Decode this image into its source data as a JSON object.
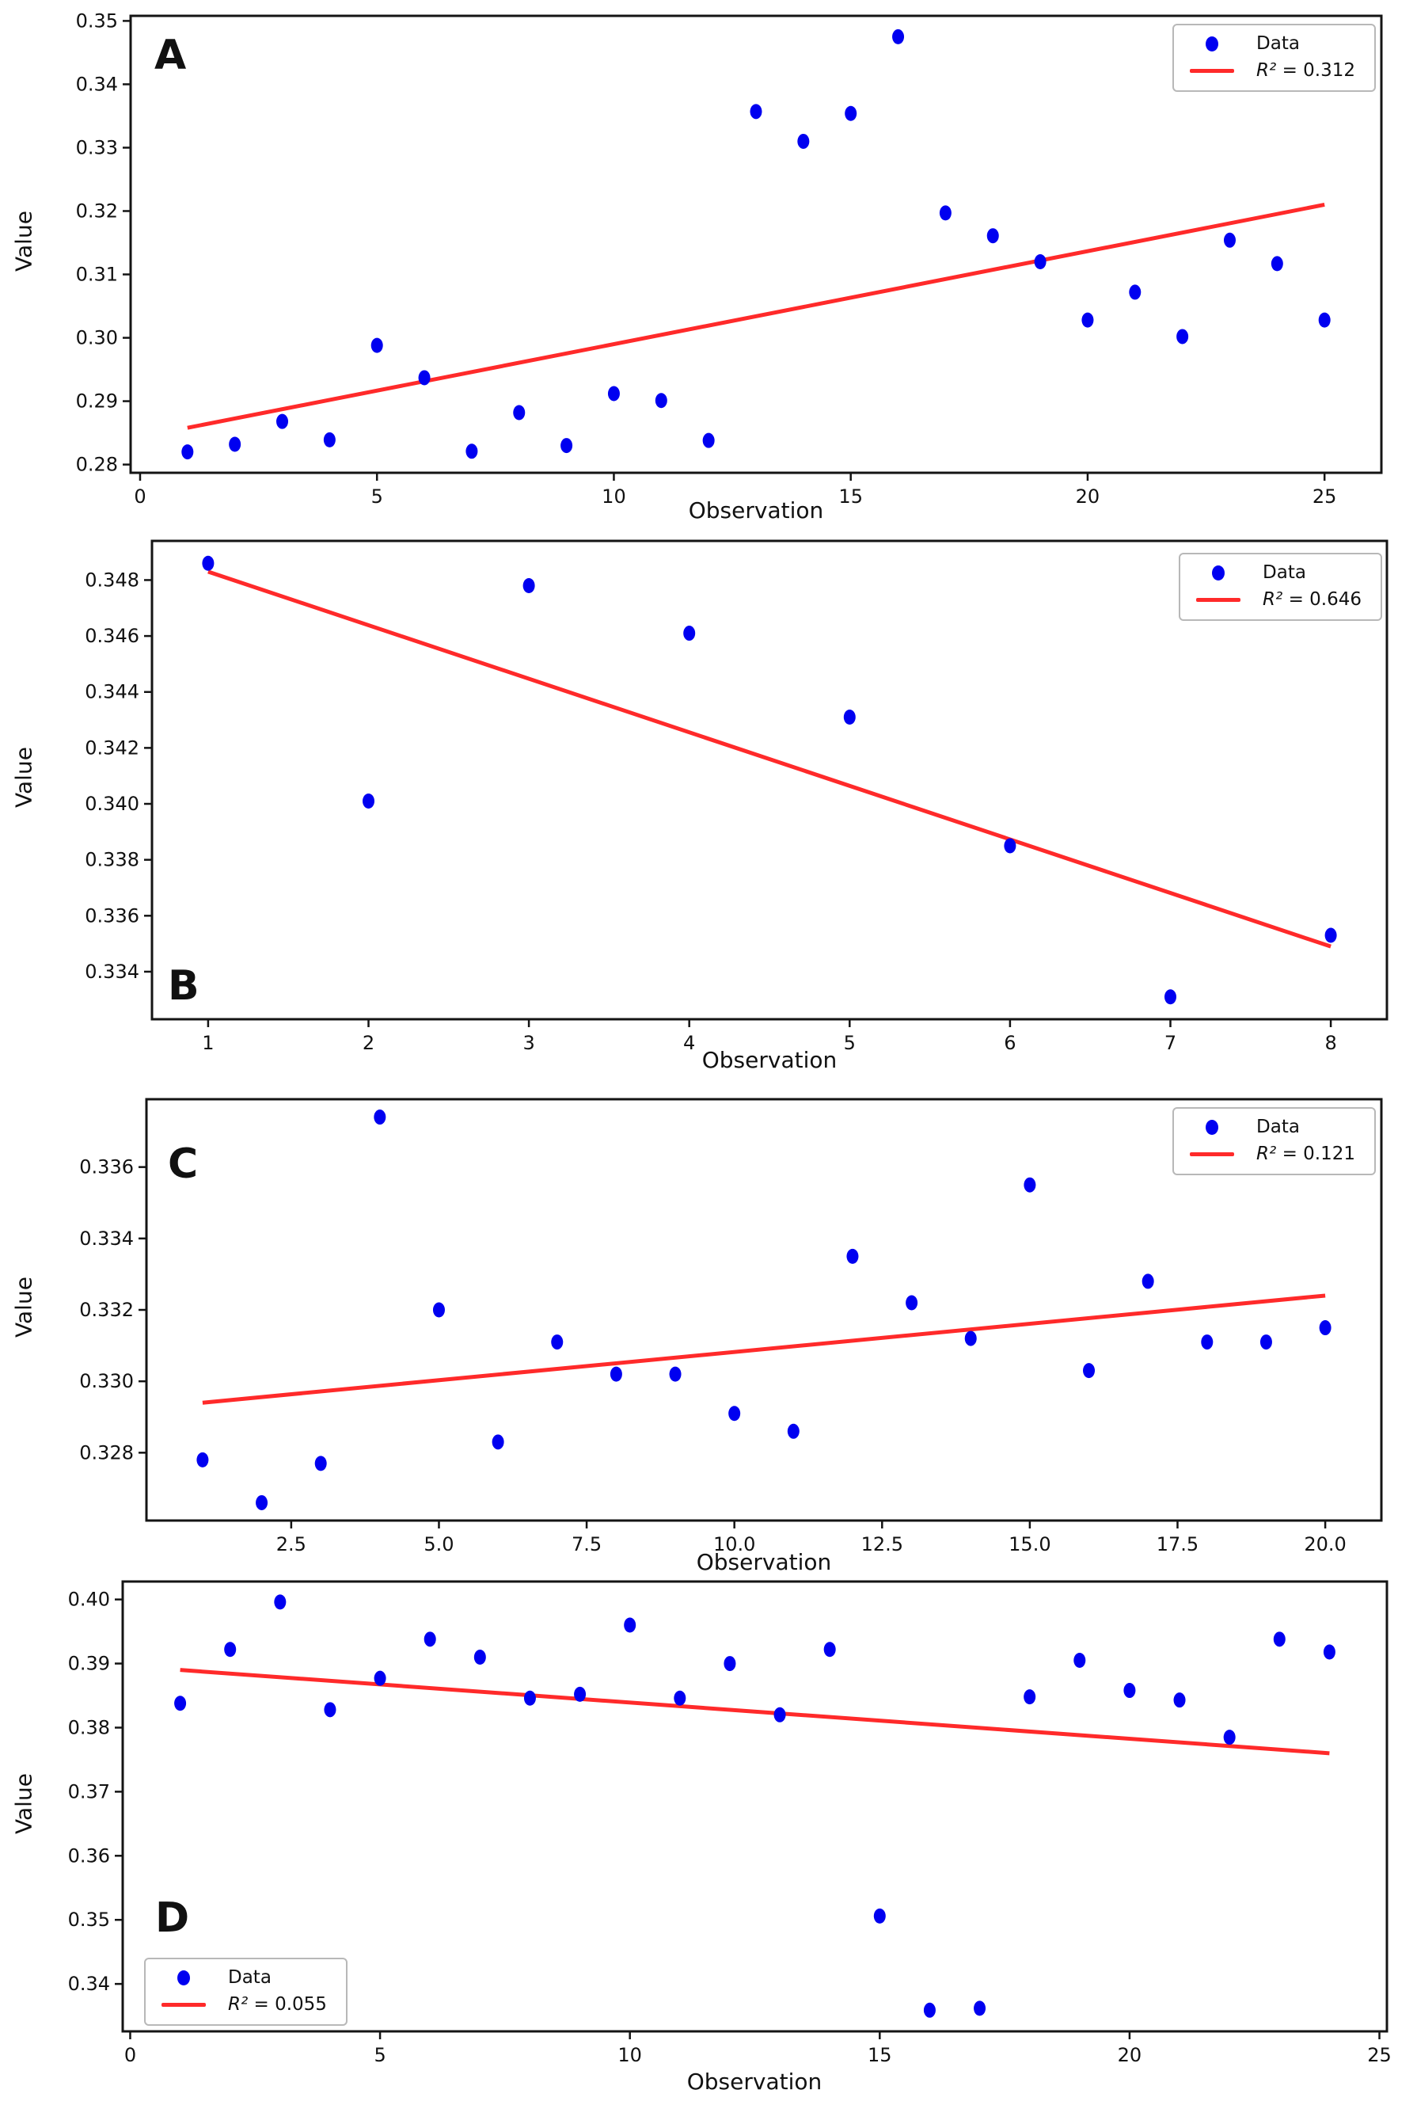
{
  "figure": {
    "xlabel": "Observation",
    "ylabel": "Value",
    "legend_data_label": "Data"
  },
  "colors": {
    "marker": "#0000f0",
    "trend": "#ff2a2a",
    "spine": "#141414",
    "tick_text": "#111111"
  },
  "chart_data": [
    {
      "type": "scatter",
      "panel_label": "A",
      "xlabel": "Observation",
      "ylabel": "Value",
      "legend": {
        "data": "Data",
        "r2_symbol": "R²",
        "r2_eq": "= 0.312",
        "position": "top-right"
      },
      "xlim": [
        -0.2,
        26.2
      ],
      "ylim": [
        0.2787,
        0.3508
      ],
      "xtick_vals": [
        0,
        5,
        10,
        15,
        20,
        25
      ],
      "xtick_labels": [
        "0",
        "5",
        "10",
        "15",
        "20",
        "25"
      ],
      "ytick_vals": [
        0.28,
        0.29,
        0.3,
        0.31,
        0.32,
        0.33,
        0.34,
        0.35
      ],
      "ytick_labels": [
        "0.28",
        "0.29",
        "0.30",
        "0.31",
        "0.32",
        "0.33",
        "0.34",
        "0.35"
      ],
      "x": [
        1,
        2,
        3,
        4,
        5,
        6,
        7,
        8,
        9,
        10,
        11,
        12,
        13,
        14,
        15,
        16,
        17,
        18,
        19,
        20,
        21,
        22,
        23,
        24,
        25
      ],
      "y": [
        0.282,
        0.2832,
        0.2868,
        0.2839,
        0.2988,
        0.2937,
        0.2821,
        0.2882,
        0.283,
        0.2912,
        0.2901,
        0.2838,
        0.3357,
        0.331,
        0.3354,
        0.3475,
        0.3197,
        0.3161,
        0.312,
        0.3028,
        0.3072,
        0.3002,
        0.3154,
        0.3117,
        0.3028
      ],
      "trend_line": {
        "x": [
          1,
          25
        ],
        "y": [
          0.2858,
          0.321
        ]
      }
    },
    {
      "type": "scatter",
      "panel_label": "B",
      "xlabel": "Observation",
      "ylabel": "Value",
      "legend": {
        "data": "Data",
        "r2_symbol": "R²",
        "r2_eq": "= 0.646",
        "position": "top-right"
      },
      "xlim": [
        0.65,
        8.35
      ],
      "ylim": [
        0.3323,
        0.3494
      ],
      "xtick_vals": [
        1,
        2,
        3,
        4,
        5,
        6,
        7,
        8
      ],
      "xtick_labels": [
        "1",
        "2",
        "3",
        "4",
        "5",
        "6",
        "7",
        "8"
      ],
      "ytick_vals": [
        0.334,
        0.336,
        0.338,
        0.34,
        0.342,
        0.344,
        0.346,
        0.348
      ],
      "ytick_labels": [
        "0.334",
        "0.336",
        "0.338",
        "0.340",
        "0.342",
        "0.344",
        "0.346",
        "0.348"
      ],
      "x": [
        1,
        2,
        3,
        4,
        5,
        6,
        7,
        8
      ],
      "y": [
        0.3486,
        0.3401,
        0.3478,
        0.3461,
        0.3431,
        0.3385,
        0.3331,
        0.3353
      ],
      "trend_line": {
        "x": [
          1,
          8
        ],
        "y": [
          0.3483,
          0.3349
        ]
      }
    },
    {
      "type": "scatter",
      "panel_label": "C",
      "xlabel": "Observation",
      "ylabel": "Value",
      "legend": {
        "data": "Data",
        "r2_symbol": "R²",
        "r2_eq": "= 0.121",
        "position": "top-right"
      },
      "xlim": [
        0.05,
        20.95
      ],
      "ylim": [
        0.3261,
        0.3379
      ],
      "xtick_vals": [
        2.5,
        5.0,
        7.5,
        10.0,
        12.5,
        15.0,
        17.5,
        20.0
      ],
      "xtick_labels": [
        "2.5",
        "5.0",
        "7.5",
        "10.0",
        "12.5",
        "15.0",
        "17.5",
        "20.0"
      ],
      "ytick_vals": [
        0.328,
        0.33,
        0.332,
        0.334,
        0.336
      ],
      "ytick_labels": [
        "0.328",
        "0.330",
        "0.332",
        "0.334",
        "0.336"
      ],
      "x": [
        1,
        2,
        3,
        4,
        5,
        6,
        7,
        8,
        9,
        10,
        11,
        12,
        13,
        14,
        15,
        16,
        17,
        18,
        19,
        20
      ],
      "y": [
        0.3278,
        0.3266,
        0.3277,
        0.3374,
        0.332,
        0.3283,
        0.3311,
        0.3302,
        0.3302,
        0.3291,
        0.3286,
        0.3335,
        0.3322,
        0.3312,
        0.3355,
        0.3303,
        0.3328,
        0.3311,
        0.3311,
        0.3315
      ],
      "trend_line": {
        "x": [
          1,
          20
        ],
        "y": [
          0.3294,
          0.3324
        ]
      }
    },
    {
      "type": "scatter",
      "panel_label": "D",
      "xlabel": "Observation",
      "ylabel": "Value",
      "legend": {
        "data": "Data",
        "r2_symbol": "R²",
        "r2_eq": "= 0.055",
        "position": "bottom-left"
      },
      "xlim": [
        -0.15,
        25.15
      ],
      "ylim": [
        0.3326,
        0.4028
      ],
      "xtick_vals": [
        0,
        5,
        10,
        15,
        20,
        25
      ],
      "xtick_labels": [
        "0",
        "5",
        "10",
        "15",
        "20",
        "25"
      ],
      "ytick_vals": [
        0.34,
        0.35,
        0.36,
        0.37,
        0.38,
        0.39,
        0.4
      ],
      "ytick_labels": [
        "0.34",
        "0.35",
        "0.36",
        "0.37",
        "0.38",
        "0.39",
        "0.40"
      ],
      "x": [
        1,
        2,
        3,
        4,
        5,
        6,
        7,
        8,
        9,
        10,
        11,
        12,
        13,
        14,
        15,
        16,
        17,
        18,
        19,
        20,
        21,
        22,
        23,
        24
      ],
      "y": [
        0.3838,
        0.3922,
        0.3996,
        0.3828,
        0.3877,
        0.3938,
        0.391,
        0.3846,
        0.3852,
        0.396,
        0.3846,
        0.39,
        0.382,
        0.3922,
        0.3506,
        0.3359,
        0.3362,
        0.3848,
        0.3905,
        0.3858,
        0.3843,
        0.3785,
        0.3938,
        0.3918
      ],
      "trend_line": {
        "x": [
          1,
          24
        ],
        "y": [
          0.389,
          0.376
        ]
      }
    }
  ]
}
